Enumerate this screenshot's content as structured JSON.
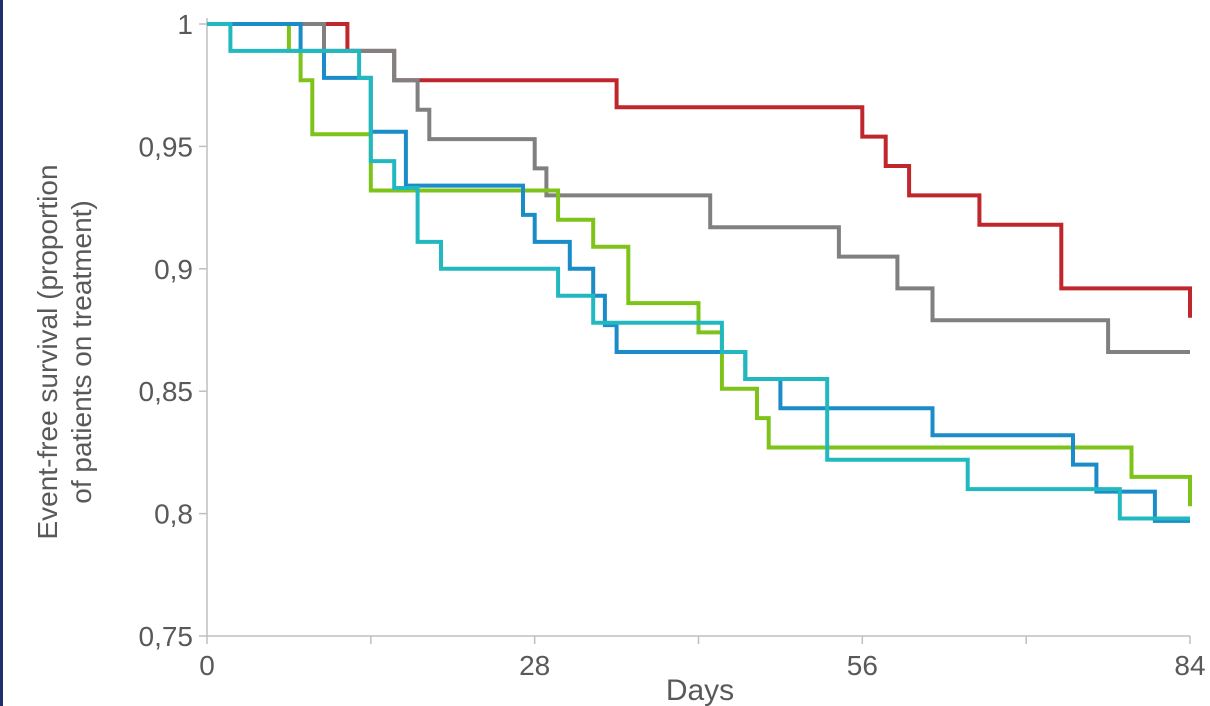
{
  "chart_data": {
    "type": "line",
    "step": true,
    "title": "",
    "xlabel": "Days",
    "ylabel": "Event-free survival (proportion of patients on treatment)",
    "ylabel_lines": [
      "Event-free survival (proportion",
      "of patients on treatment)"
    ],
    "xlim": [
      0,
      84
    ],
    "ylim": [
      0.75,
      1
    ],
    "x_ticks": [
      0,
      28,
      56,
      84
    ],
    "x_tick_labels": [
      "0",
      "28",
      "56",
      "84"
    ],
    "y_ticks": [
      0.75,
      0.8,
      0.85,
      0.9,
      0.95,
      1
    ],
    "y_tick_labels": [
      "0,75",
      "0,8",
      "0,85",
      "0,9",
      "0,95",
      "1"
    ],
    "grid": false,
    "legend": "none",
    "series": [
      {
        "color": "#c0272d",
        "points": [
          [
            0,
            1
          ],
          [
            12,
            1
          ],
          [
            12,
            0.989
          ],
          [
            16,
            0.989
          ],
          [
            16,
            0.977
          ],
          [
            35,
            0.977
          ],
          [
            35,
            0.966
          ],
          [
            56,
            0.966
          ],
          [
            56,
            0.954
          ],
          [
            58,
            0.954
          ],
          [
            58,
            0.942
          ],
          [
            60,
            0.942
          ],
          [
            60,
            0.93
          ],
          [
            66,
            0.93
          ],
          [
            66,
            0.918
          ],
          [
            73,
            0.918
          ],
          [
            73,
            0.892
          ],
          [
            84,
            0.892
          ],
          [
            84,
            0.88
          ]
        ]
      },
      {
        "color": "#808080",
        "points": [
          [
            0,
            1
          ],
          [
            10,
            1
          ],
          [
            10,
            0.989
          ],
          [
            16,
            0.989
          ],
          [
            16,
            0.977
          ],
          [
            18,
            0.977
          ],
          [
            18,
            0.965
          ],
          [
            19,
            0.965
          ],
          [
            19,
            0.953
          ],
          [
            28,
            0.953
          ],
          [
            28,
            0.941
          ],
          [
            29,
            0.941
          ],
          [
            29,
            0.93
          ],
          [
            43,
            0.93
          ],
          [
            43,
            0.917
          ],
          [
            54,
            0.917
          ],
          [
            54,
            0.905
          ],
          [
            59,
            0.905
          ],
          [
            59,
            0.892
          ],
          [
            62,
            0.892
          ],
          [
            62,
            0.879
          ],
          [
            77,
            0.879
          ],
          [
            77,
            0.866
          ],
          [
            84,
            0.866
          ]
        ]
      },
      {
        "color": "#7dc31a",
        "points": [
          [
            0,
            1
          ],
          [
            7,
            1
          ],
          [
            7,
            0.989
          ],
          [
            8,
            0.989
          ],
          [
            8,
            0.977
          ],
          [
            9,
            0.977
          ],
          [
            9,
            0.955
          ],
          [
            14,
            0.955
          ],
          [
            14,
            0.932
          ],
          [
            30,
            0.932
          ],
          [
            30,
            0.92
          ],
          [
            33,
            0.92
          ],
          [
            33,
            0.909
          ],
          [
            36,
            0.909
          ],
          [
            36,
            0.886
          ],
          [
            42,
            0.886
          ],
          [
            42,
            0.874
          ],
          [
            44,
            0.874
          ],
          [
            44,
            0.851
          ],
          [
            47,
            0.851
          ],
          [
            47,
            0.839
          ],
          [
            48,
            0.839
          ],
          [
            48,
            0.827
          ],
          [
            79,
            0.827
          ],
          [
            79,
            0.815
          ],
          [
            84,
            0.815
          ],
          [
            84,
            0.803
          ]
        ]
      },
      {
        "color": "#1a8cc8",
        "points": [
          [
            0,
            1
          ],
          [
            8,
            1
          ],
          [
            8,
            0.989
          ],
          [
            10,
            0.989
          ],
          [
            10,
            0.978
          ],
          [
            14,
            0.978
          ],
          [
            14,
            0.956
          ],
          [
            17,
            0.956
          ],
          [
            17,
            0.934
          ],
          [
            27,
            0.934
          ],
          [
            27,
            0.922
          ],
          [
            28,
            0.922
          ],
          [
            28,
            0.911
          ],
          [
            31,
            0.911
          ],
          [
            31,
            0.9
          ],
          [
            33,
            0.9
          ],
          [
            33,
            0.889
          ],
          [
            34,
            0.889
          ],
          [
            34,
            0.877
          ],
          [
            35,
            0.877
          ],
          [
            35,
            0.866
          ],
          [
            46,
            0.866
          ],
          [
            46,
            0.855
          ],
          [
            49,
            0.855
          ],
          [
            49,
            0.843
          ],
          [
            62,
            0.843
          ],
          [
            62,
            0.832
          ],
          [
            74,
            0.832
          ],
          [
            74,
            0.82
          ],
          [
            76,
            0.82
          ],
          [
            76,
            0.809
          ],
          [
            81,
            0.809
          ],
          [
            81,
            0.797
          ],
          [
            84,
            0.797
          ]
        ]
      },
      {
        "color": "#22b8c0",
        "points": [
          [
            0,
            1
          ],
          [
            2,
            1
          ],
          [
            2,
            0.989
          ],
          [
            13,
            0.989
          ],
          [
            13,
            0.978
          ],
          [
            14,
            0.978
          ],
          [
            14,
            0.944
          ],
          [
            16,
            0.944
          ],
          [
            16,
            0.933
          ],
          [
            18,
            0.933
          ],
          [
            18,
            0.911
          ],
          [
            20,
            0.911
          ],
          [
            20,
            0.9
          ],
          [
            30,
            0.9
          ],
          [
            30,
            0.889
          ],
          [
            33,
            0.889
          ],
          [
            33,
            0.878
          ],
          [
            44,
            0.878
          ],
          [
            44,
            0.866
          ],
          [
            46,
            0.866
          ],
          [
            46,
            0.855
          ],
          [
            53,
            0.855
          ],
          [
            53,
            0.822
          ],
          [
            65,
            0.822
          ],
          [
            65,
            0.81
          ],
          [
            78,
            0.81
          ],
          [
            78,
            0.798
          ],
          [
            84,
            0.798
          ]
        ]
      }
    ]
  }
}
